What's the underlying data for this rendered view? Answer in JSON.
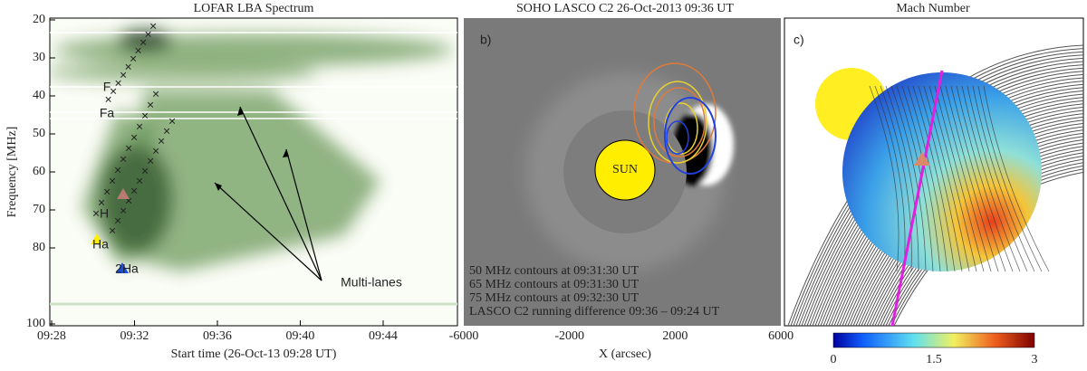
{
  "panels": [
    {
      "title": "LOFAR LBA Spectrum",
      "y_label": "Frequency [MHz]",
      "y_ticks": [
        "20",
        "30",
        "40",
        "50",
        "60",
        "70",
        "80",
        "100"
      ],
      "x_label": "Start time (26-Oct-13 09:28 UT)",
      "x_ticks": [
        "09:28",
        "09:32",
        "09:36",
        "09:40",
        "09:44"
      ],
      "annotations": [
        "F",
        "Fa",
        "H",
        "Ha",
        "2Ha",
        "Multi-lanes"
      ]
    },
    {
      "title": "SOHO LASCO C2 26-Oct-2013 09:36 UT",
      "tag": "b)",
      "sun": "SUN",
      "x_label": "X (arcsec)",
      "x_ticks": [
        "-6000",
        "-2000",
        "2000",
        "6000"
      ],
      "legend": [
        "50 MHz contours at 09:31:30 UT",
        "65 MHz contours at 09:31:30 UT",
        "75 MHz contours at 09:32:30 UT",
        "LASCO C2 running difference 09:36 – 09:24 UT"
      ]
    },
    {
      "title": "Mach Number",
      "tag": "c)",
      "colorbar_ticks": [
        "0",
        "1.5",
        "3"
      ]
    }
  ]
}
